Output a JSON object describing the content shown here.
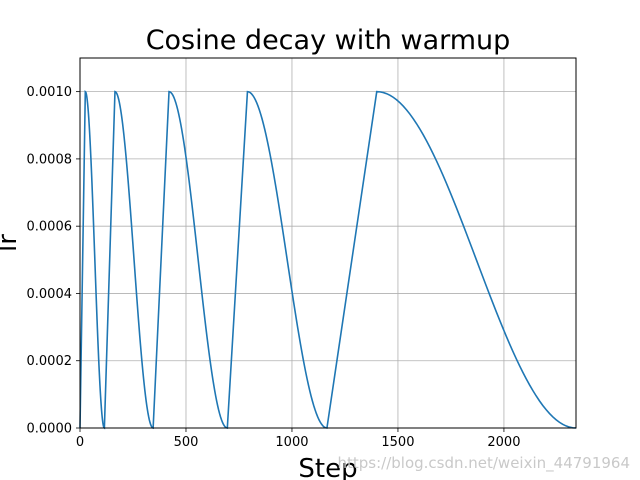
{
  "chart_data": {
    "type": "line",
    "title": "Cosine decay with warmup",
    "xlabel": "Step",
    "ylabel": "lr",
    "xlim": [
      0,
      2340
    ],
    "ylim": [
      0,
      0.0011
    ],
    "x_ticks": [
      0,
      500,
      1000,
      1500,
      2000
    ],
    "x_tick_labels": [
      "0",
      "500",
      "1000",
      "1500",
      "2000"
    ],
    "y_ticks": [
      0,
      0.0002,
      0.0004,
      0.0006,
      0.0008,
      0.001
    ],
    "y_tick_labels": [
      "0.0000",
      "0.0002",
      "0.0004",
      "0.0006",
      "0.0008",
      "0.0010"
    ],
    "grid": true,
    "line_color": "#1f77b4",
    "series": [
      {
        "cycles": [
          {
            "start": 0,
            "peak": 25,
            "end": 115,
            "peak_value": 0.001
          },
          {
            "start": 115,
            "peak": 165,
            "end": 345,
            "peak_value": 0.001
          },
          {
            "start": 345,
            "peak": 420,
            "end": 695,
            "peak_value": 0.001
          },
          {
            "start": 695,
            "peak": 790,
            "end": 1165,
            "peak_value": 0.001
          },
          {
            "start": 1165,
            "peak": 1400,
            "end": 2340,
            "peak_value": 0.001
          }
        ]
      }
    ]
  },
  "watermark": "https://blog.csdn.net/weixin_44791964"
}
